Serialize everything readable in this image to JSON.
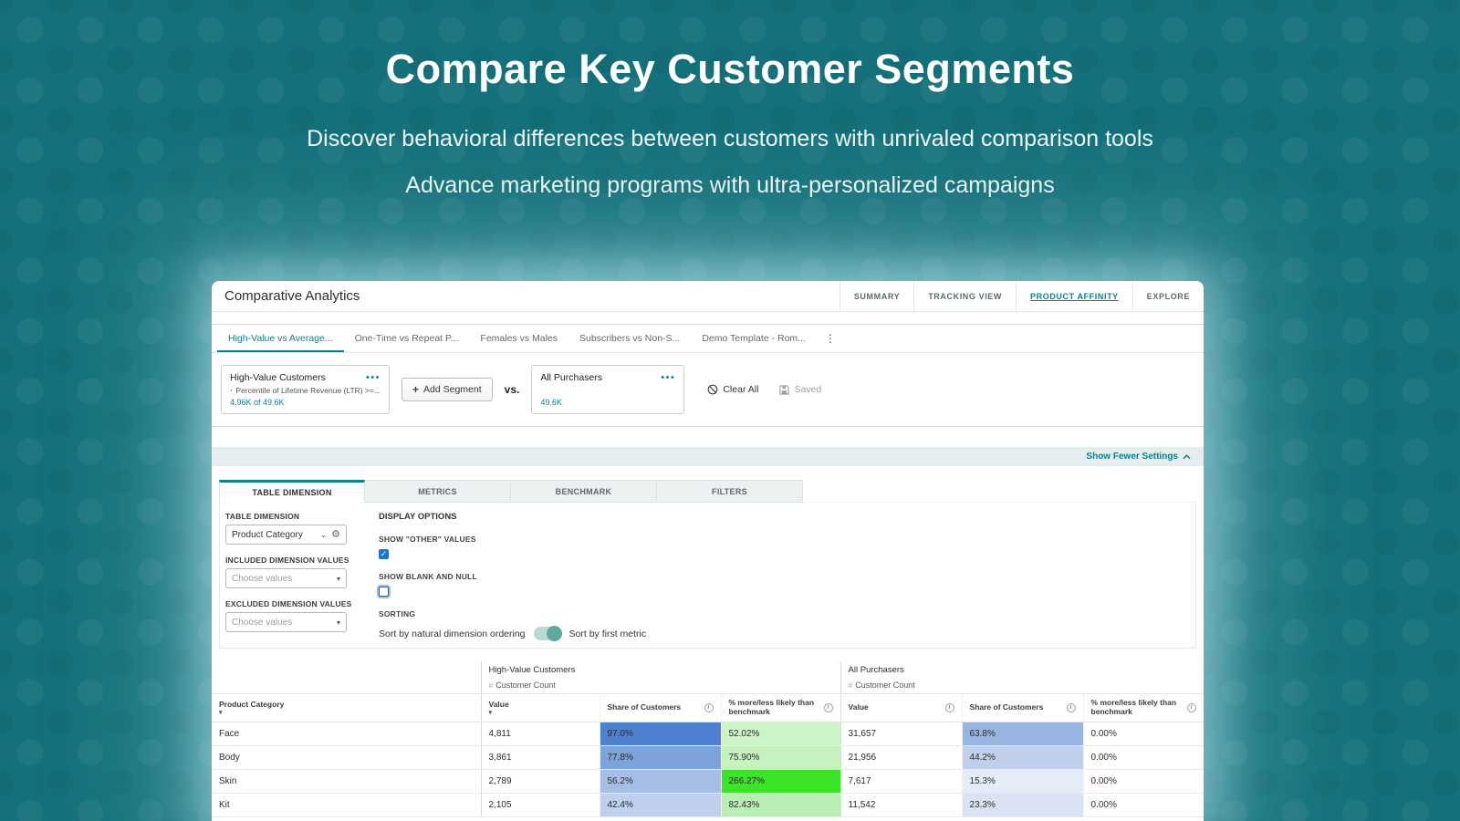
{
  "hero": {
    "title": "Compare Key Customer Segments",
    "subtitle1": "Discover behavioral differences between customers with unrivaled comparison tools",
    "subtitle2": "Advance marketing programs with ultra-personalized campaigns"
  },
  "win": {
    "title": "Comparative Analytics",
    "nav": [
      "SUMMARY",
      "TRACKING VIEW",
      "PRODUCT AFFINITY",
      "EXPLORE"
    ],
    "tabs": [
      "High-Value vs Average...",
      "One-Time vs Repeat P...",
      "Females vs Males",
      "Subscribers vs Non-S...",
      "Demo Template - Rom..."
    ],
    "segments": {
      "left_name": "High-Value Customers",
      "left_filter": "Percentile of Lifetime Revenue (LTR) >=...",
      "left_count": "4.96K of 49.6K",
      "add_label": "Add Segment",
      "vs": "vs.",
      "right_name": "All Purchasers",
      "right_count": "49.6K",
      "clear_all": "Clear All",
      "saved": "Saved"
    },
    "settings": {
      "show_fewer": "Show Fewer Settings",
      "tabs": [
        "TABLE DIMENSION",
        "METRICS",
        "BENCHMARK",
        "FILTERS"
      ],
      "dim_label": "TABLE DIMENSION",
      "dim_value": "Product Category",
      "included_label": "INCLUDED DIMENSION VALUES",
      "excluded_label": "EXCLUDED DIMENSION VALUES",
      "choose_placeholder": "Choose values",
      "display_options": "DISPLAY OPTIONS",
      "show_other": "SHOW \"OTHER\" VALUES",
      "show_blank": "SHOW BLANK AND NULL",
      "sorting": "SORTING",
      "sort_natural": "Sort by natural dimension ordering",
      "sort_first": "Sort by first metric"
    },
    "table": {
      "group_headers": [
        "High-Value Customers",
        "All Purchasers"
      ],
      "metric_label": "Customer Count",
      "columns": [
        "Product Category",
        "Value",
        "Share of Customers",
        "% more/less likely than benchmark",
        "Value",
        "Share of Customers",
        "% more/less likely than benchmark"
      ],
      "rows": [
        {
          "cells": [
            {
              "t": "Face"
            },
            {
              "t": "4,811"
            },
            {
              "t": "97.0%",
              "bg": "#4f81d1"
            },
            {
              "t": "52.02%",
              "bg": "#cdf4c8"
            },
            {
              "t": "31,657"
            },
            {
              "t": "63.8%",
              "bg": "#98b4e1"
            },
            {
              "t": "0.00%"
            }
          ]
        },
        {
          "cells": [
            {
              "t": "Body"
            },
            {
              "t": "3,861"
            },
            {
              "t": "77.8%",
              "bg": "#7da3db"
            },
            {
              "t": "75.90%",
              "bg": "#c6f2c0"
            },
            {
              "t": "21,956"
            },
            {
              "t": "44.2%",
              "bg": "#c0d0ec"
            },
            {
              "t": "0.00%"
            }
          ]
        },
        {
          "cells": [
            {
              "t": "Skin"
            },
            {
              "t": "2,789"
            },
            {
              "t": "56.2%",
              "bg": "#a6bee6"
            },
            {
              "t": "266.27%",
              "bg": "#3be427"
            },
            {
              "t": "7,617"
            },
            {
              "t": "15.3%",
              "bg": "#e5ecf8"
            },
            {
              "t": "0.00%"
            }
          ]
        },
        {
          "cells": [
            {
              "t": "Kit"
            },
            {
              "t": "2,105"
            },
            {
              "t": "42.4%",
              "bg": "#bfd0ee"
            },
            {
              "t": "82.43%",
              "bg": "#b9efb4"
            },
            {
              "t": "11,542"
            },
            {
              "t": "23.3%",
              "bg": "#d9e3f4"
            },
            {
              "t": "0.00%"
            }
          ]
        }
      ]
    },
    "colors": {
      "accent": "#0c7f8e",
      "heat_strong_blue": "#4f81d1",
      "heat_bright_green": "#3be427"
    }
  }
}
